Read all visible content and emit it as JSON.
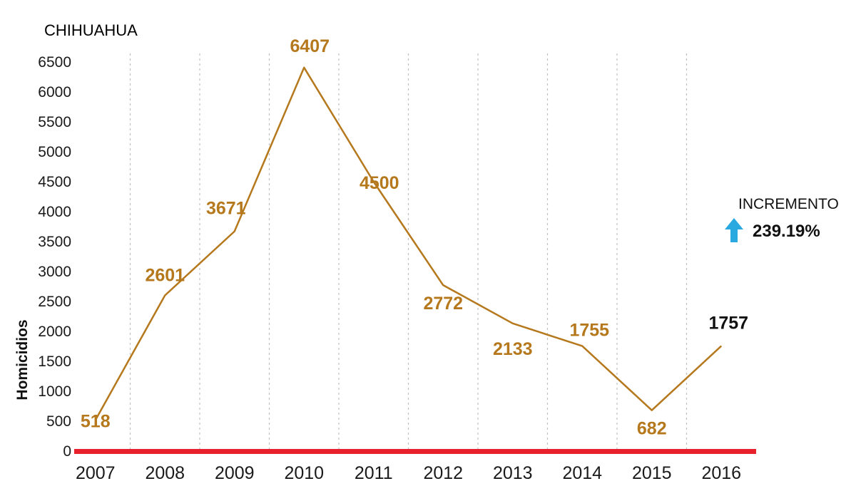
{
  "chart_data": {
    "type": "line",
    "title": "CHIHUAHUA",
    "ylabel": "Homicidios",
    "xlabel": "",
    "x": [
      "2007",
      "2008",
      "2009",
      "2010",
      "2011",
      "2012",
      "2013",
      "2014",
      "2015",
      "2016"
    ],
    "values": [
      518,
      2601,
      3671,
      6407,
      4500,
      2772,
      2133,
      1755,
      682,
      1757
    ],
    "ylim": [
      0,
      6500
    ],
    "yticks": [
      0,
      500,
      1000,
      1500,
      2000,
      2500,
      3000,
      3500,
      4000,
      4500,
      5000,
      5500,
      6000,
      6500
    ],
    "grid": "vertical dotted",
    "colors": {
      "line": "#b5781c",
      "label": "#b5781c",
      "last_label": "#111111",
      "baseline": "#e8222d",
      "grid": "#c0c0c0",
      "arrow": "#29a9e0"
    }
  },
  "annotation": {
    "label": "INCREMENTO",
    "value": "239.19%",
    "icon": "up-arrow-icon"
  }
}
